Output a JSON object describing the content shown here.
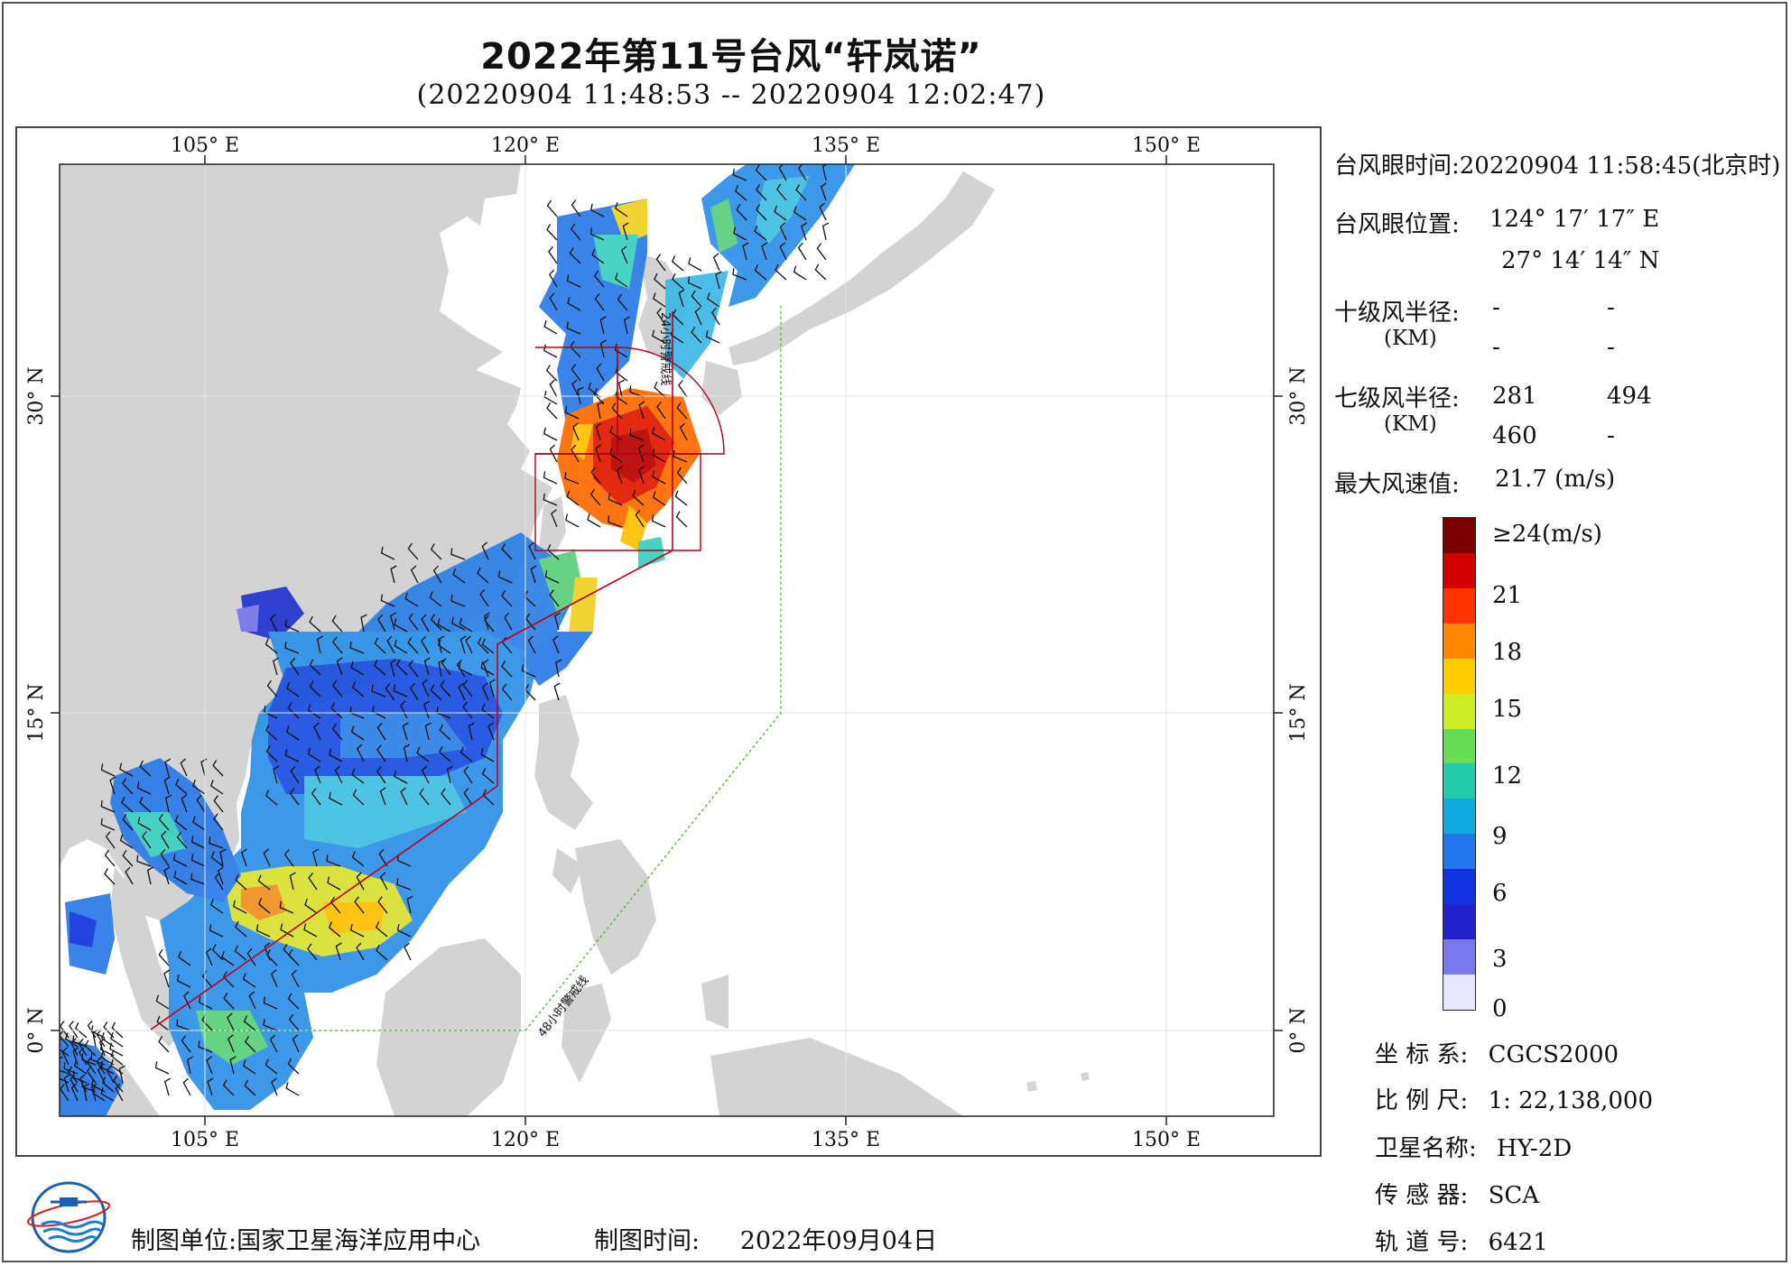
{
  "title": "2022年第11号台风“轩岚诺”",
  "subtitle": "(20220904 11:48:53 -- 20220904 12:02:47)",
  "map": {
    "lon_ticks": [
      "105° E",
      "120° E",
      "135° E",
      "150° E"
    ],
    "lat_ticks": [
      "30° N",
      "15° N",
      "0° N"
    ],
    "line_24h": "24小时警戒线",
    "line_48h": "48小时警戒线",
    "colors": {
      "land": "#d3d3d3",
      "sea": "#ffffff",
      "warning_24h": "#c0001a",
      "warning_48h": "#44bb22"
    }
  },
  "info": {
    "eye_time_label": "台风眼时间:",
    "eye_time_value": "20220904 11:58:45(北京时)",
    "eye_pos_label": "台风眼位置:",
    "eye_lon": "124° 17′ 17″ E",
    "eye_lat": "27° 14′ 14″ N",
    "r10_label": "十级风半径:",
    "r10_unit": "(KM)",
    "r10_values": [
      "-",
      "-",
      "-",
      "-"
    ],
    "r7_label": "七级风半径:",
    "r7_unit": "(KM)",
    "r7_values": [
      "281",
      "494",
      "460",
      "-"
    ],
    "max_wind_label": "最大风速值:",
    "max_wind_value": "21.7 (m/s)"
  },
  "colorbar": {
    "labels": [
      "≥24(m/s)",
      "21",
      "18",
      "15",
      "12",
      "9",
      "6",
      "3",
      "0"
    ],
    "colors": [
      "#7a0000",
      "#d40000",
      "#ff3300",
      "#ff8800",
      "#ffcc00",
      "#ccee22",
      "#66dd55",
      "#22ccaa",
      "#11aadd",
      "#2277ee",
      "#1133dd",
      "#2222cc",
      "#7777ee",
      "#e6e6ff"
    ]
  },
  "meta": {
    "crs_label": "坐 标 系:",
    "crs_value": "CGCS2000",
    "scale_label": "比 例 尺:",
    "scale_value": "1: 22,138,000",
    "satellite_label": "卫星名称:",
    "satellite_value": "HY-2D",
    "sensor_label": "传 感 器:",
    "sensor_value": "SCA",
    "orbit_label": "轨 道 号:",
    "orbit_value": "6421"
  },
  "footer": {
    "unit_label": "制图单位:",
    "unit_value": "国家卫星海洋应用中心",
    "time_label": "制图时间:",
    "time_value": "2022年09月04日"
  }
}
